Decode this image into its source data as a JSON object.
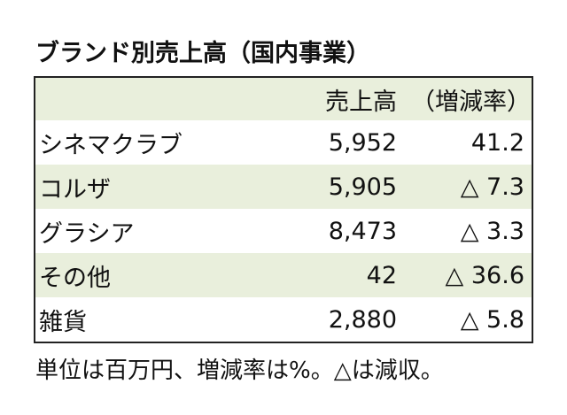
{
  "title": "ブランド別売上高（国内事業）",
  "table": {
    "headers": {
      "name": "",
      "sales": "売上高",
      "rate": "（増減率）"
    },
    "rows": [
      {
        "name": "シネマクラブ",
        "sales": "5,952",
        "rate": "41.2"
      },
      {
        "name": "コルザ",
        "sales": "5,905",
        "rate": "△ 7.3"
      },
      {
        "name": "グラシア",
        "sales": "8,473",
        "rate": "△ 3.3"
      },
      {
        "name": "その他",
        "sales": "42",
        "rate": "△ 36.6"
      },
      {
        "name": "雑貨",
        "sales": "2,880",
        "rate": "△ 5.8"
      }
    ]
  },
  "note": "単位は百万円、増減率は%。△は減収。",
  "colors": {
    "shade": "#e9efdc",
    "border": "#222222",
    "text": "#111111"
  }
}
